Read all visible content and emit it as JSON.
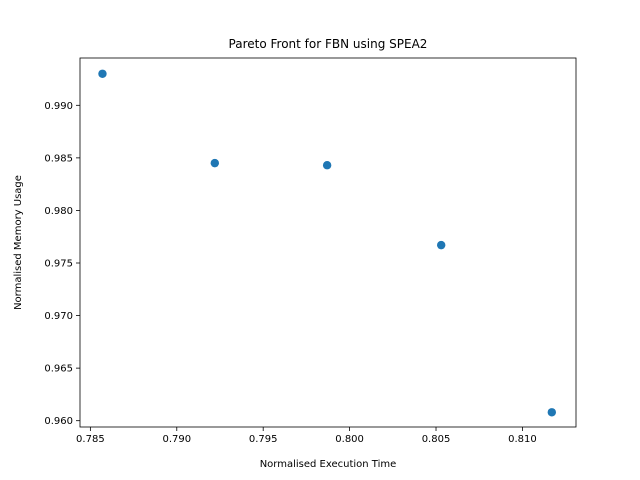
{
  "chart_data": {
    "type": "scatter",
    "title": "Pareto Front for FBN using SPEA2",
    "xlabel": "Normalised Execution Time",
    "ylabel": "Normalised Memory Usage",
    "xlim": [
      0.7844,
      0.8131
    ],
    "ylim": [
      0.9594,
      0.9945
    ],
    "x_ticks": [
      0.785,
      0.79,
      0.795,
      0.8,
      0.805,
      0.81
    ],
    "x_tick_labels": [
      "0.785",
      "0.790",
      "0.795",
      "0.800",
      "0.805",
      "0.810"
    ],
    "y_ticks": [
      0.96,
      0.965,
      0.97,
      0.975,
      0.98,
      0.985,
      0.99
    ],
    "y_tick_labels": [
      "0.960",
      "0.965",
      "0.970",
      "0.975",
      "0.980",
      "0.985",
      "0.990"
    ],
    "grid": false,
    "marker_color": "#1f77b4",
    "points": [
      {
        "x": 0.7857,
        "y": 0.993
      },
      {
        "x": 0.7922,
        "y": 0.9845
      },
      {
        "x": 0.7987,
        "y": 0.9843
      },
      {
        "x": 0.8053,
        "y": 0.9767
      },
      {
        "x": 0.8117,
        "y": 0.9608
      }
    ]
  }
}
